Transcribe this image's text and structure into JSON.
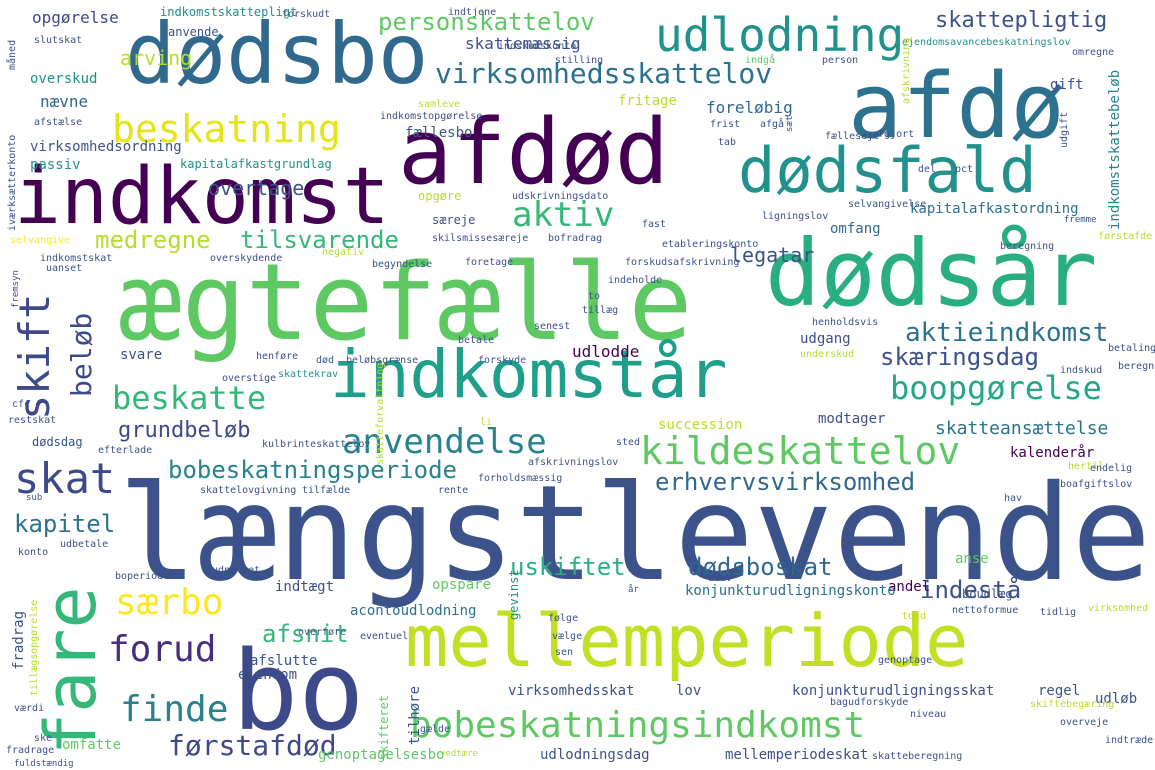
{
  "words": [
    {
      "text": "længstlevende",
      "color": "#3b528b"
    },
    {
      "text": "ægtefælle",
      "color": "#5ec962"
    },
    {
      "text": "afdød",
      "color": "#440154"
    },
    {
      "text": "afdø",
      "color": "#2c728e"
    },
    {
      "text": "dødsår",
      "color": "#29af7f"
    },
    {
      "text": "dødsbo",
      "color": "#31688e"
    },
    {
      "text": "indkomst",
      "color": "#440154"
    },
    {
      "text": "dødsfald",
      "color": "#21918c"
    },
    {
      "text": "indkomstår",
      "color": "#1f9e89"
    },
    {
      "text": "mellemperiode",
      "color": "#c2df23"
    },
    {
      "text": "bo",
      "color": "#3e4989"
    },
    {
      "text": "fare",
      "color": "#35b779"
    },
    {
      "text": "udlodning",
      "color": "#21918c"
    },
    {
      "text": "bobeskatningsindkomst",
      "color": "#5ec962"
    },
    {
      "text": "beskatning",
      "color": "#e5e419"
    },
    {
      "text": "kildeskattelov",
      "color": "#5ec962"
    },
    {
      "text": "anvendelse",
      "color": "#26828e"
    },
    {
      "text": "boopgørelse",
      "color": "#22a884"
    },
    {
      "text": "skift",
      "color": "#3e4989"
    },
    {
      "text": "skat",
      "color": "#3e4989"
    },
    {
      "text": "finde",
      "color": "#26828e"
    },
    {
      "text": "forud",
      "color": "#472d7b"
    },
    {
      "text": "særbo",
      "color": "#fde725"
    },
    {
      "text": "beløb",
      "color": "#3e4989"
    },
    {
      "text": "beskatte",
      "color": "#35b779"
    },
    {
      "text": "virksomhedsskattelov",
      "color": "#2c728e"
    },
    {
      "text": "aktiv",
      "color": "#35b779"
    },
    {
      "text": "bobeskatningsperiode",
      "color": "#26828e"
    },
    {
      "text": "erhvervsvirksomhed",
      "color": "#31688e"
    },
    {
      "text": "førstafdød",
      "color": "#3e4989"
    },
    {
      "text": "skattepligtig",
      "color": "#3b528b"
    },
    {
      "text": "personskattelov",
      "color": "#5ec962"
    },
    {
      "text": "aktieindkomst",
      "color": "#2c728e"
    },
    {
      "text": "skæringsdag",
      "color": "#3b528b"
    },
    {
      "text": "dødsboskat",
      "color": "#31688e"
    },
    {
      "text": "uskiftet",
      "color": "#29af7f"
    },
    {
      "text": "indestå",
      "color": "#3b528b"
    },
    {
      "text": "kapitel",
      "color": "#2c728e"
    },
    {
      "text": "afsnit",
      "color": "#35b779"
    },
    {
      "text": "medregne",
      "color": "#b5de2b"
    },
    {
      "text": "tilsvarende",
      "color": "#35b779"
    },
    {
      "text": "grundbeløb",
      "color": "#3e4989"
    },
    {
      "text": "skatteansættelse",
      "color": "#2c728e"
    },
    {
      "text": "legatar",
      "color": "#3b528b"
    },
    {
      "text": "arving",
      "color": "#b5de2b"
    },
    {
      "text": "nævne",
      "color": "#31688e"
    },
    {
      "text": "overskud",
      "color": "#21918c"
    },
    {
      "text": "opgørelse",
      "color": "#3e4989"
    },
    {
      "text": "skattemæssig",
      "color": "#3b528b"
    },
    {
      "text": "virksomhedsordning",
      "color": "#3b528b"
    },
    {
      "text": "overtage",
      "color": "#3b528b"
    },
    {
      "text": "passiv",
      "color": "#21918c"
    },
    {
      "text": "kapitalafkastgrundlag",
      "color": "#21918c"
    },
    {
      "text": "fællesbo",
      "color": "#3b528b"
    },
    {
      "text": "fritage",
      "color": "#b5de2b"
    },
    {
      "text": "foreløbig",
      "color": "#31688e"
    },
    {
      "text": "gift",
      "color": "#3b528b"
    },
    {
      "text": "indkomstskattebeløb",
      "color": "#26828e"
    },
    {
      "text": "kapitalafkastordning",
      "color": "#2c728e"
    },
    {
      "text": "omfang",
      "color": "#31688e"
    },
    {
      "text": "udlodde",
      "color": "#440154"
    },
    {
      "text": "svare",
      "color": "#3b528b"
    },
    {
      "text": "udgang",
      "color": "#3b528b"
    },
    {
      "text": "succession",
      "color": "#b5de2b"
    },
    {
      "text": "modtager",
      "color": "#3b528b"
    },
    {
      "text": "kalenderår",
      "color": "#440154"
    },
    {
      "text": "indtægt",
      "color": "#3b528b"
    },
    {
      "text": "opspare",
      "color": "#5ec962"
    },
    {
      "text": "anse",
      "color": "#5ec962"
    },
    {
      "text": "andel",
      "color": "#440154"
    },
    {
      "text": "boudlæg",
      "color": "#3b528b"
    },
    {
      "text": "konjunkturudligningskonto",
      "color": "#2c728e"
    },
    {
      "text": "acontoudlodning",
      "color": "#2c728e"
    },
    {
      "text": "fradrag",
      "color": "#3b528b"
    },
    {
      "text": "afslutte",
      "color": "#3b528b"
    },
    {
      "text": "ejendom",
      "color": "#3b528b"
    },
    {
      "text": "virksomhedsskat",
      "color": "#3b528b"
    },
    {
      "text": "lov",
      "color": "#3b528b"
    },
    {
      "text": "konjunkturudligningsskat",
      "color": "#3b528b"
    },
    {
      "text": "regel",
      "color": "#3b528b"
    },
    {
      "text": "udløb",
      "color": "#3b528b"
    },
    {
      "text": "omfatte",
      "color": "#5ec962"
    },
    {
      "text": "genoptagelsesbo",
      "color": "#5ec962"
    },
    {
      "text": "udlodningsdag",
      "color": "#3b528b"
    },
    {
      "text": "mellemperiodeskat",
      "color": "#3b528b"
    },
    {
      "text": "tilhøre",
      "color": "#3b528b"
    },
    {
      "text": "gevinst",
      "color": "#21918c"
    },
    {
      "text": "skifteret",
      "color": "#5ec962"
    },
    {
      "text": "indkomstskattepligt",
      "color": "#21918c"
    },
    {
      "text": "forskudt",
      "color": "#3b528b"
    },
    {
      "text": "indtjene",
      "color": "#3b528b"
    },
    {
      "text": "anvende",
      "color": "#3b528b"
    },
    {
      "text": "slutskat",
      "color": "#3b528b"
    },
    {
      "text": "stilling",
      "color": "#3b528b"
    },
    {
      "text": "indskudskonto",
      "color": "#3b528b"
    },
    {
      "text": "indgå",
      "color": "#5ec962"
    },
    {
      "text": "person",
      "color": "#3b528b"
    },
    {
      "text": "ejendomsavancebeskatningslov",
      "color": "#21918c"
    },
    {
      "text": "omregne",
      "color": "#3b528b"
    },
    {
      "text": "afstælse",
      "color": "#3b528b"
    },
    {
      "text": "samleve",
      "color": "#b5de2b"
    },
    {
      "text": "indkomstopgørelse",
      "color": "#3b528b"
    },
    {
      "text": "frist",
      "color": "#3b528b"
    },
    {
      "text": "afgå",
      "color": "#3b528b"
    },
    {
      "text": "tab",
      "color": "#3b528b"
    },
    {
      "text": "særeje",
      "color": "#3b528b"
    },
    {
      "text": "udskrivningsdato",
      "color": "#3b528b"
    },
    {
      "text": "opgøre",
      "color": "#b5de2b"
    },
    {
      "text": "fælleseje",
      "color": "#3b528b"
    },
    {
      "text": "afgjort",
      "color": "#3b528b"
    },
    {
      "text": "del",
      "color": "#3b528b"
    },
    {
      "text": "pct",
      "color": "#3b528b"
    },
    {
      "text": "selvangivelse",
      "color": "#3b528b"
    },
    {
      "text": "fast",
      "color": "#3b528b"
    },
    {
      "text": "ligningslov",
      "color": "#3b528b"
    },
    {
      "text": "skilsmissesæreje",
      "color": "#3b528b"
    },
    {
      "text": "bofradrag",
      "color": "#3b528b"
    },
    {
      "text": "etableringskonto",
      "color": "#3b528b"
    },
    {
      "text": "beregning",
      "color": "#3b528b"
    },
    {
      "text": "førstafde",
      "color": "#b5de2b"
    },
    {
      "text": "selvangive",
      "color": "#fde725"
    },
    {
      "text": "indkomstskat",
      "color": "#3b528b"
    },
    {
      "text": "overskydende",
      "color": "#3b528b"
    },
    {
      "text": "negativ",
      "color": "#b5de2b"
    },
    {
      "text": "begyndelse",
      "color": "#3b528b"
    },
    {
      "text": "foretage",
      "color": "#3b528b"
    },
    {
      "text": "forskudsafskrivning",
      "color": "#3b528b"
    },
    {
      "text": "indeholde",
      "color": "#3b528b"
    },
    {
      "text": "uanset",
      "color": "#3b528b"
    },
    {
      "text": "to",
      "color": "#3b528b"
    },
    {
      "text": "tillæg",
      "color": "#3b528b"
    },
    {
      "text": "senest",
      "color": "#3b528b"
    },
    {
      "text": "henholdsvis",
      "color": "#3b528b"
    },
    {
      "text": "henføre",
      "color": "#3b528b"
    },
    {
      "text": "død",
      "color": "#3b528b"
    },
    {
      "text": "beløbsgrænse",
      "color": "#3b528b"
    },
    {
      "text": "betale",
      "color": "#3b528b"
    },
    {
      "text": "forskyde",
      "color": "#3b528b"
    },
    {
      "text": "underskud",
      "color": "#b5de2b"
    },
    {
      "text": "betaling",
      "color": "#3b528b"
    },
    {
      "text": "indskud",
      "color": "#3b528b"
    },
    {
      "text": "beregne",
      "color": "#3b528b"
    },
    {
      "text": "overstige",
      "color": "#3b528b"
    },
    {
      "text": "skattekrav",
      "color": "#21918c"
    },
    {
      "text": "cfc",
      "color": "#3b528b"
    },
    {
      "text": "restskat",
      "color": "#3b528b"
    },
    {
      "text": "dødsdag",
      "color": "#3b528b"
    },
    {
      "text": "efterlade",
      "color": "#3b528b"
    },
    {
      "text": "kulbrinteskattelov",
      "color": "#3b528b"
    },
    {
      "text": "afskrivningslov",
      "color": "#3b528b"
    },
    {
      "text": "sted",
      "color": "#3b528b"
    },
    {
      "text": "hertil",
      "color": "#b5de2b"
    },
    {
      "text": "endelig",
      "color": "#3b528b"
    },
    {
      "text": "skattelovgivning",
      "color": "#3b528b"
    },
    {
      "text": "tilfælde",
      "color": "#3b528b"
    },
    {
      "text": "rente",
      "color": "#3b528b"
    },
    {
      "text": "forholdsmæssig",
      "color": "#3b528b"
    },
    {
      "text": "hav",
      "color": "#3b528b"
    },
    {
      "text": "boafgiftslov",
      "color": "#3b528b"
    },
    {
      "text": "udbetale",
      "color": "#3b528b"
    },
    {
      "text": "konto",
      "color": "#3b528b"
    },
    {
      "text": "boperiode",
      "color": "#3b528b"
    },
    {
      "text": "udnyttet",
      "color": "#3b528b"
    },
    {
      "text": "drev",
      "color": "#3b528b"
    },
    {
      "text": "nå",
      "color": "#3b528b"
    },
    {
      "text": "overføre",
      "color": "#3b528b"
    },
    {
      "text": "eventuel",
      "color": "#3b528b"
    },
    {
      "text": "følge",
      "color": "#3b528b"
    },
    {
      "text": "vælge",
      "color": "#3b528b"
    },
    {
      "text": "sen",
      "color": "#3b528b"
    },
    {
      "text": "told",
      "color": "#b5de2b"
    },
    {
      "text": "nettoformue",
      "color": "#3b528b"
    },
    {
      "text": "tidlig",
      "color": "#3b528b"
    },
    {
      "text": "virksomhed",
      "color": "#b5de2b"
    },
    {
      "text": "genoptage",
      "color": "#3b528b"
    },
    {
      "text": "bagudforskyde",
      "color": "#3b528b"
    },
    {
      "text": "niveau",
      "color": "#3b528b"
    },
    {
      "text": "skiftebegæring",
      "color": "#b5de2b"
    },
    {
      "text": "overveje",
      "color": "#3b528b"
    },
    {
      "text": "indtræde",
      "color": "#3b528b"
    },
    {
      "text": "gælde",
      "color": "#3b528b"
    },
    {
      "text": "værdi",
      "color": "#3b528b"
    },
    {
      "text": "ske",
      "color": "#3b528b"
    },
    {
      "text": "fradrage",
      "color": "#3b528b"
    },
    {
      "text": "fuldstændig",
      "color": "#3b528b"
    },
    {
      "text": "vedtære",
      "color": "#b5de2b"
    },
    {
      "text": "skatteberegning",
      "color": "#3b528b"
    },
    {
      "text": "fremme",
      "color": "#3b528b"
    },
    {
      "text": "tillægsopgørelse",
      "color": "#b5de2b"
    },
    {
      "text": "skatteforvaltning",
      "color": "#b5de2b"
    },
    {
      "text": "iværksætterkonto",
      "color": "#3b528b"
    },
    {
      "text": "måned",
      "color": "#3b528b"
    },
    {
      "text": "afskrivning",
      "color": "#b5de2b"
    },
    {
      "text": "udgift",
      "color": "#3b528b"
    },
    {
      "text": "sæt",
      "color": "#3b528b"
    },
    {
      "text": "fremsyn",
      "color": "#3b528b"
    },
    {
      "text": "år",
      "color": "#3b528b"
    },
    {
      "text": "li",
      "color": "#b5de2b"
    },
    {
      "text": "sub",
      "color": "#3b528b"
    }
  ]
}
